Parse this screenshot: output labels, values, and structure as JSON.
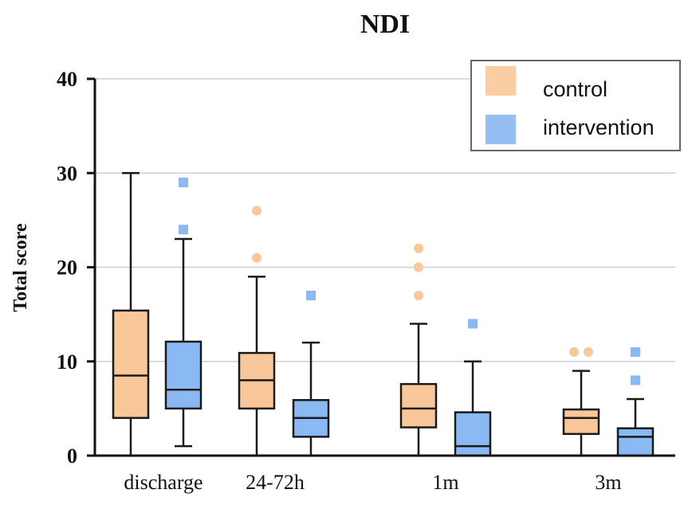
{
  "chart_data": {
    "type": "boxplot",
    "title": "NDI",
    "xlabel": "",
    "ylabel": "Total score",
    "ylim": [
      0,
      40
    ],
    "yticks": [
      0,
      10,
      20,
      30,
      40
    ],
    "grid": true,
    "legend_position": "top-right",
    "categories": [
      "discharge",
      "24-72h",
      "1m",
      "3m"
    ],
    "series": [
      {
        "name": "control",
        "color": "#FAC898",
        "stroke": "#1a1a1a",
        "marker": "circle",
        "boxes": [
          {
            "min": 0,
            "q1": 4,
            "median": 8.5,
            "q3": 15.4,
            "max": 30,
            "outliers": []
          },
          {
            "min": 0,
            "q1": 5,
            "median": 8,
            "q3": 10.9,
            "max": 19,
            "outliers": [
              21,
              26
            ]
          },
          {
            "min": 0,
            "q1": 3,
            "median": 5,
            "q3": 7.6,
            "max": 14,
            "outliers": [
              17,
              20,
              22
            ]
          },
          {
            "min": 0,
            "q1": 2.3,
            "median": 4,
            "q3": 4.9,
            "max": 9,
            "outliers": [
              11,
              11
            ]
          }
        ]
      },
      {
        "name": "intervention",
        "color": "#8AB8F2",
        "stroke": "#1a1a1a",
        "marker": "square",
        "boxes": [
          {
            "min": 1,
            "q1": 5,
            "median": 7,
            "q3": 12.1,
            "max": 23,
            "outliers": [
              24,
              29
            ]
          },
          {
            "min": 0,
            "q1": 2,
            "median": 4,
            "q3": 5.9,
            "max": 12,
            "outliers": [
              17
            ]
          },
          {
            "min": 0,
            "q1": 0,
            "median": 1,
            "q3": 4.6,
            "max": 10,
            "outliers": [
              14
            ]
          },
          {
            "min": 0,
            "q1": 0,
            "median": 2,
            "q3": 2.9,
            "max": 6,
            "outliers": [
              8,
              11
            ]
          }
        ]
      }
    ]
  }
}
